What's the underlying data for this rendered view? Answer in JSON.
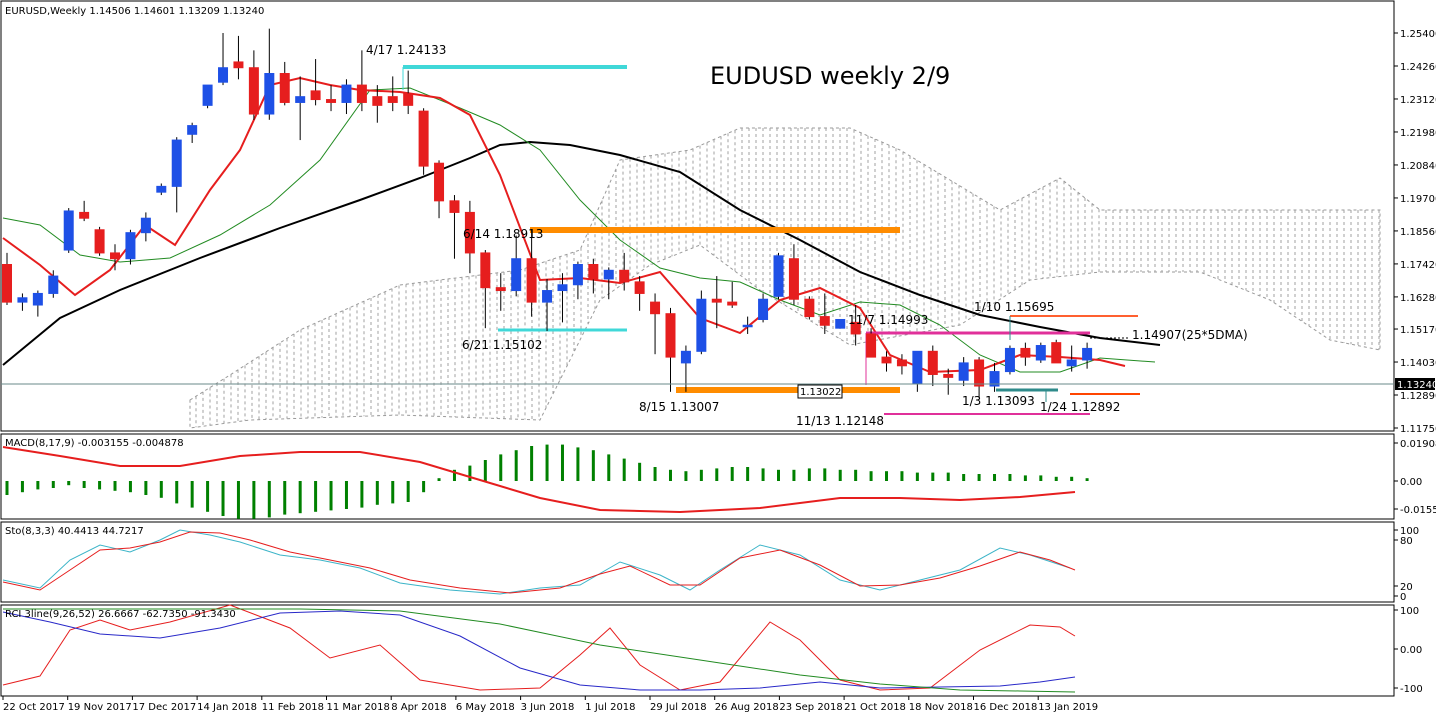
{
  "header": {
    "title": "EURUSD,Weekly  1.14506 1.14601 1.13209 1.13240",
    "chart_title": "EUDUSD weekly 2/9",
    "current_price_label": "1.13240"
  },
  "axes": {
    "price_ticks": [
      "1.25400",
      "1.24260",
      "1.23120",
      "1.21980",
      "1.20840",
      "1.19700",
      "1.18560",
      "1.17420",
      "1.16280",
      "1.15170",
      "1.14030",
      "1.12890",
      "1.11750"
    ],
    "macd_ticks": [
      "0.019082",
      "0.00",
      "-0.015599"
    ],
    "sto_ticks": [
      "100",
      "80",
      "20",
      "0"
    ],
    "rci_ticks": [
      "100",
      "0.00",
      "-100"
    ],
    "date_labels": [
      "22 Oct 2017",
      "19 Nov 2017",
      "17 Dec 2017",
      "14 Jan 2018",
      "11 Feb 2018",
      "11 Mar 2018",
      "8 Apr 2018",
      "6 May 2018",
      "3 Jun 2018",
      "1 Jul 2018",
      "29 Jul 2018",
      "26 Aug 2018",
      "23 Sep 2018",
      "21 Oct 2018",
      "18 Nov 2018",
      "16 Dec 2018",
      "13 Jan 2019"
    ]
  },
  "indicators": {
    "macd_label": "MACD(8,17,9) -0.003155 -0.004878",
    "sto_label": "Sto(8,3,3) 40.4413 44.7217",
    "rci_label": "RCI 3line(9,26,52) 26.6667 -62.7350 -91.3430"
  },
  "annotations": [
    {
      "text": "4/17 1.24133",
      "color": "#40d8d8"
    },
    {
      "text": "6/14 1.18913",
      "color": "#ff8c00"
    },
    {
      "text": "6/21 1.15102",
      "color": "#40d8d8"
    },
    {
      "text": "8/15 1.13007",
      "color": "#ff8c00"
    },
    {
      "text": "1.13022",
      "color": "#000000"
    },
    {
      "text": "11/13 1.12148",
      "color": "#e0309a"
    },
    {
      "text": "11/7 1.14993",
      "color": "#e0309a"
    },
    {
      "text": "1/10 1.15695",
      "color": "#2e8b8b"
    },
    {
      "text": "1/3 1.13093",
      "color": "#2e8b8b"
    },
    {
      "text": "1/24 1.12892",
      "color": "#ff4500"
    },
    {
      "text": "1.14907(25*5DMA)",
      "color": "#000000"
    }
  ],
  "colors": {
    "bull": "#1e50e6",
    "bear": "#e61e1e",
    "ma_fast": "#e61e1e",
    "ma_mid": "#228b22",
    "ma_slow": "#000000",
    "cyan": "#40d8d8",
    "orange": "#ff8c00",
    "magenta": "#e0309a",
    "macd_hist": "#008000",
    "macd_signal": "#e61e1e",
    "sto_k": "#3cb4c8",
    "sto_d": "#e61e1e",
    "rci_short": "#e61e1e",
    "rci_mid": "#2828c8",
    "rci_long": "#228b22"
  },
  "chart_data": {
    "type": "candlestick",
    "symbol": "EURUSD",
    "timeframe": "Weekly",
    "ohlc_last": {
      "open": 1.14506,
      "high": 1.14601,
      "low": 1.13209,
      "close": 1.1324
    },
    "ylim": [
      1.1175,
      1.2597
    ],
    "candles": [
      {
        "o": 1.174,
        "h": 1.178,
        "l": 1.16,
        "c": 1.161
      },
      {
        "o": 1.161,
        "h": 1.164,
        "l": 1.158,
        "c": 1.1625
      },
      {
        "o": 1.16,
        "h": 1.165,
        "l": 1.156,
        "c": 1.164
      },
      {
        "o": 1.164,
        "h": 1.172,
        "l": 1.1625,
        "c": 1.17
      },
      {
        "o": 1.179,
        "h": 1.1935,
        "l": 1.178,
        "c": 1.1925
      },
      {
        "o": 1.192,
        "h": 1.196,
        "l": 1.189,
        "c": 1.19
      },
      {
        "o": 1.186,
        "h": 1.187,
        "l": 1.177,
        "c": 1.178
      },
      {
        "o": 1.178,
        "h": 1.181,
        "l": 1.172,
        "c": 1.176
      },
      {
        "o": 1.176,
        "h": 1.186,
        "l": 1.174,
        "c": 1.185
      },
      {
        "o": 1.185,
        "h": 1.192,
        "l": 1.182,
        "c": 1.19
      },
      {
        "o": 1.199,
        "h": 1.202,
        "l": 1.198,
        "c": 1.201
      },
      {
        "o": 1.201,
        "h": 1.218,
        "l": 1.192,
        "c": 1.217
      },
      {
        "o": 1.219,
        "h": 1.223,
        "l": 1.216,
        "c": 1.222
      },
      {
        "o": 1.229,
        "h": 1.236,
        "l": 1.228,
        "c": 1.236
      },
      {
        "o": 1.237,
        "h": 1.254,
        "l": 1.236,
        "c": 1.242
      },
      {
        "o": 1.244,
        "h": 1.253,
        "l": 1.238,
        "c": 1.242
      },
      {
        "o": 1.242,
        "h": 1.248,
        "l": 1.224,
        "c": 1.226
      },
      {
        "o": 1.226,
        "h": 1.2555,
        "l": 1.224,
        "c": 1.24
      },
      {
        "o": 1.24,
        "h": 1.244,
        "l": 1.229,
        "c": 1.23
      },
      {
        "o": 1.23,
        "h": 1.239,
        "l": 1.217,
        "c": 1.232
      },
      {
        "o": 1.234,
        "h": 1.245,
        "l": 1.229,
        "c": 1.231
      },
      {
        "o": 1.231,
        "h": 1.236,
        "l": 1.227,
        "c": 1.23
      },
      {
        "o": 1.23,
        "h": 1.238,
        "l": 1.226,
        "c": 1.236
      },
      {
        "o": 1.236,
        "h": 1.248,
        "l": 1.227,
        "c": 1.23
      },
      {
        "o": 1.232,
        "h": 1.236,
        "l": 1.223,
        "c": 1.229
      },
      {
        "o": 1.232,
        "h": 1.239,
        "l": 1.227,
        "c": 1.23
      },
      {
        "o": 1.233,
        "h": 1.241,
        "l": 1.226,
        "c": 1.229
      },
      {
        "o": 1.227,
        "h": 1.228,
        "l": 1.205,
        "c": 1.208
      },
      {
        "o": 1.209,
        "h": 1.21,
        "l": 1.19,
        "c": 1.196
      },
      {
        "o": 1.196,
        "h": 1.198,
        "l": 1.176,
        "c": 1.192
      },
      {
        "o": 1.192,
        "h": 1.196,
        "l": 1.171,
        "c": 1.178
      },
      {
        "o": 1.178,
        "h": 1.179,
        "l": 1.152,
        "c": 1.166
      },
      {
        "o": 1.166,
        "h": 1.171,
        "l": 1.158,
        "c": 1.165
      },
      {
        "o": 1.165,
        "h": 1.184,
        "l": 1.163,
        "c": 1.176
      },
      {
        "o": 1.176,
        "h": 1.186,
        "l": 1.156,
        "c": 1.161
      },
      {
        "o": 1.161,
        "h": 1.169,
        "l": 1.151,
        "c": 1.165
      },
      {
        "o": 1.165,
        "h": 1.171,
        "l": 1.154,
        "c": 1.167
      },
      {
        "o": 1.167,
        "h": 1.175,
        "l": 1.162,
        "c": 1.174
      },
      {
        "o": 1.174,
        "h": 1.176,
        "l": 1.164,
        "c": 1.169
      },
      {
        "o": 1.169,
        "h": 1.173,
        "l": 1.162,
        "c": 1.172
      },
      {
        "o": 1.172,
        "h": 1.178,
        "l": 1.165,
        "c": 1.168
      },
      {
        "o": 1.168,
        "h": 1.17,
        "l": 1.158,
        "c": 1.164
      },
      {
        "o": 1.161,
        "h": 1.164,
        "l": 1.143,
        "c": 1.157
      },
      {
        "o": 1.157,
        "h": 1.159,
        "l": 1.13,
        "c": 1.142
      },
      {
        "o": 1.14,
        "h": 1.146,
        "l": 1.13,
        "c": 1.144
      },
      {
        "o": 1.144,
        "h": 1.165,
        "l": 1.143,
        "c": 1.162
      },
      {
        "o": 1.162,
        "h": 1.17,
        "l": 1.152,
        "c": 1.161
      },
      {
        "o": 1.161,
        "h": 1.168,
        "l": 1.159,
        "c": 1.16
      },
      {
        "o": 1.153,
        "h": 1.156,
        "l": 1.15,
        "c": 1.153
      },
      {
        "o": 1.155,
        "h": 1.164,
        "l": 1.154,
        "c": 1.162
      },
      {
        "o": 1.163,
        "h": 1.178,
        "l": 1.162,
        "c": 1.177
      },
      {
        "o": 1.176,
        "h": 1.181,
        "l": 1.16,
        "c": 1.162
      },
      {
        "o": 1.162,
        "h": 1.163,
        "l": 1.155,
        "c": 1.156
      },
      {
        "o": 1.156,
        "h": 1.164,
        "l": 1.15,
        "c": 1.153
      },
      {
        "o": 1.152,
        "h": 1.155,
        "l": 1.152,
        "c": 1.155
      },
      {
        "o": 1.154,
        "h": 1.16,
        "l": 1.146,
        "c": 1.15
      },
      {
        "o": 1.15,
        "h": 1.152,
        "l": 1.142,
        "c": 1.142
      },
      {
        "o": 1.142,
        "h": 1.144,
        "l": 1.137,
        "c": 1.14
      },
      {
        "o": 1.141,
        "h": 1.143,
        "l": 1.136,
        "c": 1.139
      },
      {
        "o": 1.133,
        "h": 1.143,
        "l": 1.13,
        "c": 1.144
      },
      {
        "o": 1.144,
        "h": 1.146,
        "l": 1.132,
        "c": 1.136
      },
      {
        "o": 1.136,
        "h": 1.138,
        "l": 1.129,
        "c": 1.135
      },
      {
        "o": 1.134,
        "h": 1.142,
        "l": 1.132,
        "c": 1.14
      },
      {
        "o": 1.141,
        "h": 1.142,
        "l": 1.128,
        "c": 1.132
      },
      {
        "o": 1.132,
        "h": 1.14,
        "l": 1.13,
        "c": 1.137
      },
      {
        "o": 1.137,
        "h": 1.146,
        "l": 1.136,
        "c": 1.145
      },
      {
        "o": 1.145,
        "h": 1.147,
        "l": 1.139,
        "c": 1.142
      },
      {
        "o": 1.141,
        "h": 1.147,
        "l": 1.14,
        "c": 1.146
      },
      {
        "o": 1.147,
        "h": 1.148,
        "l": 1.14,
        "c": 1.14
      },
      {
        "o": 1.139,
        "h": 1.146,
        "l": 1.137,
        "c": 1.141
      },
      {
        "o": 1.141,
        "h": 1.147,
        "l": 1.138,
        "c": 1.145
      },
      {
        "o": 1.14506,
        "h": 1.14601,
        "l": 1.13209,
        "c": 1.1324
      }
    ]
  }
}
